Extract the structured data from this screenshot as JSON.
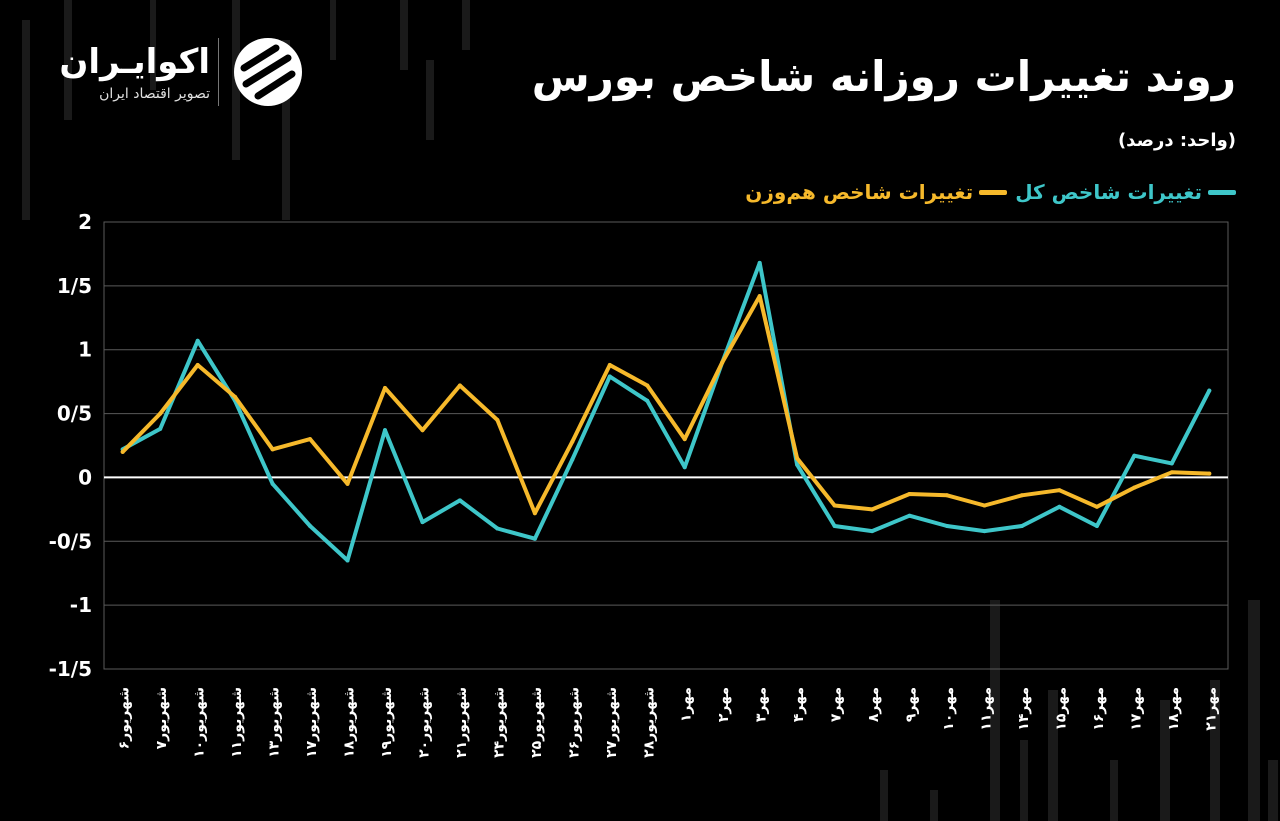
{
  "header": {
    "title": "روند تغییرات روزانه شاخص بورس",
    "unit": "(واحد: درصد)"
  },
  "logo": {
    "name": "اکوایـران",
    "tagline": "تصویر اقتصاد ایران"
  },
  "colors": {
    "background": "#000000",
    "total_index": "#3ec6c9",
    "equal_weight_index": "#f6b92b",
    "grid": "#5a5a5a",
    "zero_line": "#ffffff"
  },
  "chart_data": {
    "type": "line",
    "title": "روند تغییرات روزانه شاخص بورس",
    "ylabel": "",
    "xlabel": "",
    "ylim": [
      -1.5,
      2
    ],
    "y_ticks": [
      "2",
      "1/5",
      "1",
      "0/5",
      "0",
      "-0/5",
      "-1",
      "-1/5"
    ],
    "y_tick_values": [
      2,
      1.5,
      1,
      0.5,
      0,
      -0.5,
      -1,
      -1.5
    ],
    "grid": true,
    "legend": "top-right",
    "categories": [
      "شهریور۶",
      "شهریور۷",
      "شهریور۱۰",
      "شهریور۱۱",
      "شهریور۱۳",
      "شهریور۱۷",
      "شهریور۱۸",
      "شهریور۱۹",
      "شهریور۲۰",
      "شهریور۲۱",
      "شهریور۲۴",
      "شهریور۲۵",
      "شهریور۲۶",
      "شهریور۲۷",
      "شهریور۲۸",
      "مهر۱",
      "مهر۲",
      "مهر۳",
      "مهر۴",
      "مهر۷",
      "مهر۸",
      "مهر۹",
      "مهر۱۰",
      "مهر۱۱",
      "مهر۱۴",
      "مهر۱۵",
      "مهر۱۶",
      "مهر۱۷",
      "مهر۱۸",
      "مهر۲۱"
    ],
    "series": [
      {
        "name": "تغییرات شاخص کل",
        "color": "#3ec6c9",
        "values": [
          0.22,
          0.38,
          1.07,
          0.6,
          -0.05,
          -0.38,
          -0.65,
          0.37,
          -0.35,
          -0.18,
          -0.4,
          -0.48,
          0.14,
          0.79,
          0.6,
          0.08,
          0.9,
          1.68,
          0.1,
          -0.38,
          -0.42,
          -0.3,
          -0.38,
          -0.42,
          -0.38,
          -0.23,
          -0.38,
          0.17,
          0.11,
          0.68
        ]
      },
      {
        "name": "تغییرات شاخص هم‌وزن",
        "color": "#f6b92b",
        "values": [
          0.2,
          0.5,
          0.88,
          0.63,
          0.22,
          0.3,
          -0.05,
          0.7,
          0.37,
          0.72,
          0.45,
          -0.28,
          0.28,
          0.88,
          0.72,
          0.3,
          0.9,
          1.42,
          0.15,
          -0.22,
          -0.25,
          -0.13,
          -0.14,
          -0.22,
          -0.14,
          -0.1,
          -0.23,
          -0.08,
          0.04,
          0.03
        ]
      }
    ]
  }
}
